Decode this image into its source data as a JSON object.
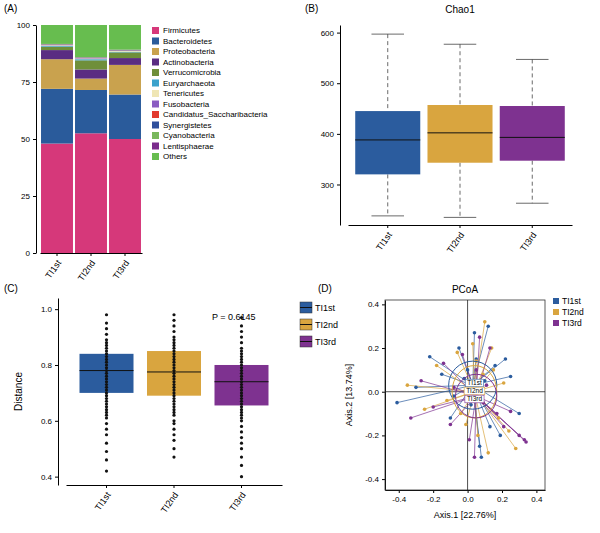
{
  "chart_data": [
    {
      "type": "bar",
      "panel_label": "(A)",
      "stacked": true,
      "legend": "right",
      "categories": [
        "TI1st",
        "TI2nd",
        "TI3rd"
      ],
      "ylim": [
        0,
        100
      ],
      "yticks": [
        0,
        25,
        50,
        75,
        100
      ],
      "series": [
        {
          "name": "Firmicutes",
          "color": "#d6387a",
          "values": [
            48,
            52.5,
            50
          ]
        },
        {
          "name": "Bacteroidetes",
          "color": "#2a5b9b",
          "values": [
            24,
            19,
            19.5
          ]
        },
        {
          "name": "Proteobacteria",
          "color": "#c9a24e",
          "values": [
            13,
            5,
            13
          ]
        },
        {
          "name": "Actinobacteria",
          "color": "#5a2d82",
          "values": [
            4,
            4,
            3
          ]
        },
        {
          "name": "Verrucomicrobia",
          "color": "#6f8f3a",
          "values": [
            1.5,
            4,
            2.5
          ]
        },
        {
          "name": "Euryarchaeota",
          "color": "#3ba2cc",
          "values": [
            0.3,
            0.5,
            0.3
          ]
        },
        {
          "name": "Tenericutes",
          "color": "#efe6b4",
          "values": [
            0.3,
            0.3,
            0.3
          ]
        },
        {
          "name": "Fusobacteria",
          "color": "#8a5cc2",
          "values": [
            0.2,
            0.2,
            0.2
          ]
        },
        {
          "name": "Candidatus_Saccharibacteria",
          "color": "#e23a2e",
          "values": [
            0.1,
            0.1,
            0.1
          ]
        },
        {
          "name": "Synergistetes",
          "color": "#2f4f9c",
          "values": [
            0.1,
            0.1,
            0.1
          ]
        },
        {
          "name": "Cyanobacteria",
          "color": "#79b85c",
          "values": [
            0.1,
            0.1,
            0.1
          ]
        },
        {
          "name": "Lentisphaerae",
          "color": "#7a2b8c",
          "values": [
            0.1,
            0.1,
            0.1
          ]
        },
        {
          "name": "Others",
          "color": "#67bd4f",
          "values": [
            8.3,
            14.1,
            10.8
          ]
        }
      ]
    },
    {
      "type": "box",
      "panel_label": "(B)",
      "title": "Chao1",
      "line_style": "dashed",
      "categories": [
        "TI1st",
        "TI2nd",
        "TI3rd"
      ],
      "colors": [
        "#2b5c9e",
        "#d9a53f",
        "#7e3290"
      ],
      "ylim": [
        220,
        615
      ],
      "yticks": [
        300,
        400,
        500,
        600
      ],
      "min": [
        238,
        235,
        263
      ],
      "q1": [
        320,
        343,
        347
      ],
      "median": [
        388,
        402,
        393
      ],
      "q3": [
        445,
        457,
        455
      ],
      "max": [
        597,
        577,
        547
      ]
    },
    {
      "type": "box",
      "panel_label": "(C)",
      "y_label": "Distance",
      "legend": "right",
      "annotations": [
        "P = 0.6145"
      ],
      "categories": [
        "TI1st",
        "TI2nd",
        "TI3rd"
      ],
      "colors": [
        "#2b5c9e",
        "#d9a53f",
        "#7e3290"
      ],
      "ylim": [
        0.37,
        1.04
      ],
      "yticks": [
        0.4,
        0.6,
        0.8,
        {
          "value": 1,
          "label": "1.0"
        }
      ],
      "q1": [
        0.7,
        0.69,
        0.655
      ],
      "median": [
        0.78,
        0.775,
        0.74
      ],
      "q3": [
        0.84,
        0.85,
        0.8
      ],
      "points": [
        [
          0.42,
          0.46,
          0.49,
          0.52,
          0.55,
          0.57,
          0.59,
          0.61,
          0.62,
          0.63,
          0.64,
          0.65,
          0.66,
          0.67,
          0.68,
          0.69,
          0.7,
          0.71,
          0.72,
          0.73,
          0.74,
          0.75,
          0.76,
          0.77,
          0.78,
          0.79,
          0.8,
          0.81,
          0.82,
          0.83,
          0.84,
          0.85,
          0.86,
          0.87,
          0.88,
          0.89,
          0.91,
          0.93,
          0.95,
          0.98
        ],
        [
          0.47,
          0.5,
          0.53,
          0.55,
          0.57,
          0.59,
          0.6,
          0.62,
          0.63,
          0.64,
          0.65,
          0.66,
          0.67,
          0.68,
          0.69,
          0.7,
          0.71,
          0.72,
          0.73,
          0.74,
          0.75,
          0.76,
          0.77,
          0.78,
          0.79,
          0.8,
          0.81,
          0.82,
          0.83,
          0.84,
          0.85,
          0.86,
          0.87,
          0.88,
          0.89,
          0.9,
          0.92,
          0.94,
          0.96,
          0.98
        ],
        [
          0.4,
          0.44,
          0.47,
          0.5,
          0.52,
          0.54,
          0.56,
          0.58,
          0.6,
          0.61,
          0.62,
          0.63,
          0.64,
          0.65,
          0.66,
          0.67,
          0.68,
          0.69,
          0.7,
          0.71,
          0.72,
          0.73,
          0.74,
          0.75,
          0.76,
          0.77,
          0.78,
          0.79,
          0.8,
          0.81,
          0.82,
          0.83,
          0.84,
          0.85,
          0.86,
          0.88,
          0.9,
          0.92,
          0.94,
          0.97
        ]
      ]
    },
    {
      "type": "scatter",
      "panel_label": "(D)",
      "title": "PCoA",
      "legend": "right",
      "x_label": "Axis.1  [22.76%]",
      "y_label": "Axis.2  [13.74%]",
      "xlim": [
        -0.48,
        0.45
      ],
      "xticks": [
        -0.4,
        -0.2,
        {
          "value": 0,
          "label": "0.0"
        },
        0.2,
        0.4
      ],
      "ylim": [
        -0.45,
        0.42
      ],
      "yticks": [
        -0.4,
        -0.2,
        {
          "value": 0,
          "label": "0.0"
        },
        0.2,
        0.4
      ],
      "series": [
        {
          "name": "TI1st",
          "color": "#2b5c9e",
          "centroid": [
            0.03,
            0.03
          ],
          "ellipse_radii": [
            0.14,
            0.11
          ],
          "x": [
            -0.41,
            -0.3,
            -0.22,
            -0.15,
            -0.1,
            -0.05,
            0.0,
            0.04,
            0.07,
            0.1,
            0.13,
            0.16,
            0.19,
            0.22,
            0.25,
            0.08,
            0.12,
            -0.08,
            0.05,
            0.3,
            0.02,
            -0.02
          ],
          "y": [
            -0.05,
            0.02,
            0.16,
            0.08,
            -0.12,
            0.2,
            0.1,
            0.27,
            -0.25,
            0.05,
            -0.16,
            0.12,
            -0.2,
            0.15,
            0.07,
            -0.3,
            0.3,
            -0.02,
            0.15,
            -0.1,
            -0.06,
            0.06
          ]
        },
        {
          "name": "TI2nd",
          "color": "#d9a53f",
          "centroid": [
            0.04,
            0.0
          ],
          "ellipse_radii": [
            0.13,
            0.12
          ],
          "x": [
            -0.35,
            -0.25,
            -0.18,
            -0.12,
            -0.06,
            -0.01,
            0.03,
            0.06,
            0.09,
            0.12,
            0.15,
            0.18,
            0.21,
            0.24,
            0.28,
            0.05,
            0.0,
            0.1,
            -0.04,
            0.14
          ],
          "y": [
            0.03,
            -0.08,
            0.12,
            -0.04,
            0.18,
            -0.15,
            0.22,
            -0.2,
            0.08,
            -0.28,
            0.1,
            -0.12,
            0.04,
            -0.18,
            -0.26,
            0.14,
            0.05,
            0.32,
            -0.1,
            0.2
          ]
        },
        {
          "name": "TI3rd",
          "color": "#7e3290",
          "centroid": [
            0.05,
            -0.02
          ],
          "ellipse_radii": [
            0.12,
            0.1
          ],
          "x": [
            -0.33,
            -0.27,
            -0.2,
            -0.14,
            -0.08,
            -0.03,
            0.01,
            0.05,
            0.09,
            0.13,
            0.17,
            0.21,
            0.25,
            0.3,
            0.33,
            0.34,
            0.07,
            -0.1,
            0.11,
            0.04
          ],
          "y": [
            -0.12,
            0.05,
            -0.07,
            0.13,
            0.02,
            0.17,
            -0.22,
            0.1,
            -0.05,
            0.2,
            -0.1,
            -0.16,
            -0.09,
            -0.2,
            -0.22,
            -0.23,
            0.25,
            -0.15,
            0.03,
            -0.3
          ]
        }
      ]
    }
  ]
}
